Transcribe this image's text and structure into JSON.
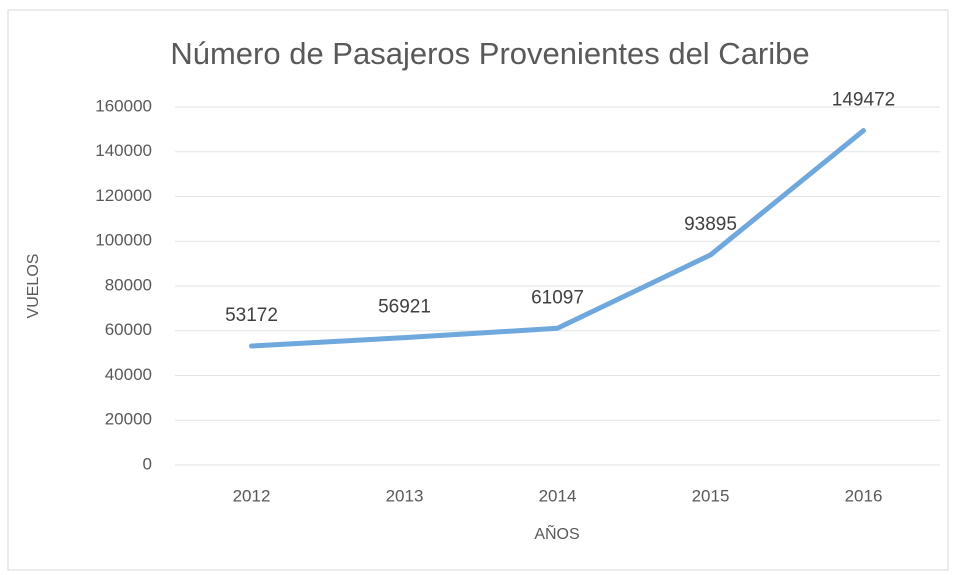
{
  "chart_data": {
    "type": "line",
    "title": "Número de Pasajeros Provenientes del Caribe",
    "x_label": "AÑOS",
    "y_label": "VUELOS",
    "categories": [
      "2012",
      "2013",
      "2014",
      "2015",
      "2016"
    ],
    "values": [
      53172,
      56921,
      61097,
      93895,
      149472
    ],
    "color": "#6fa8dc",
    "ylim": [
      0,
      160000
    ],
    "yticks": [
      0,
      20000,
      40000,
      60000,
      80000,
      100000,
      120000,
      140000,
      160000
    ],
    "grid": true
  }
}
